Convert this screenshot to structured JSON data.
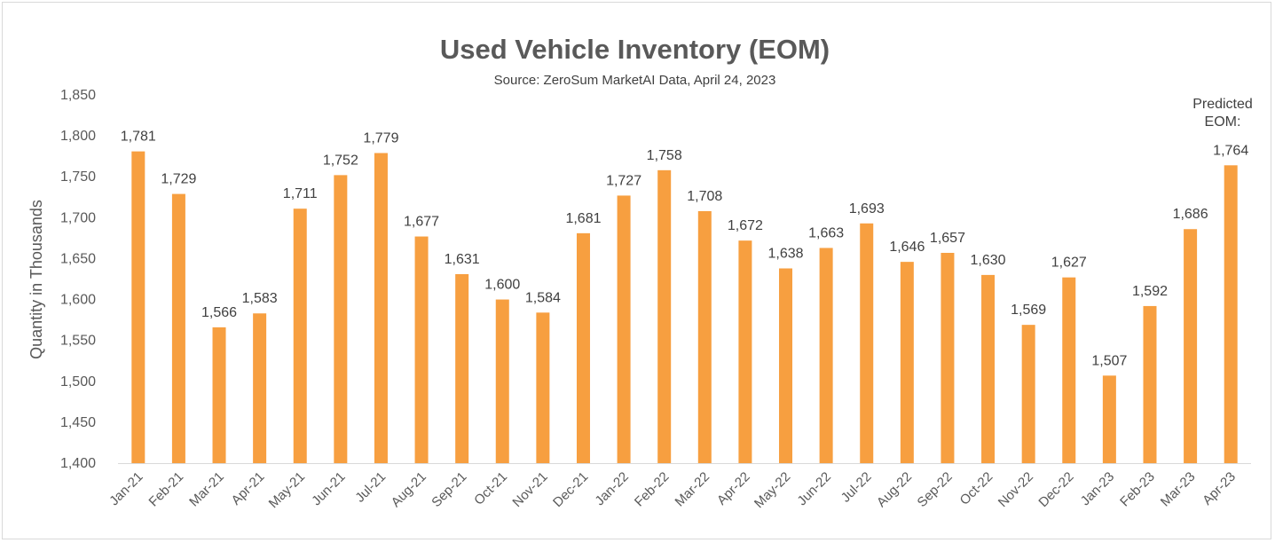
{
  "chart_data": {
    "type": "bar",
    "title": "Used Vehicle Inventory (EOM)",
    "subtitle": "Source: ZeroSum MarketAI Data, April 24, 2023",
    "ylabel": "Quantity in Thousands",
    "xlabel": "",
    "ylim": [
      1400,
      1850
    ],
    "yticks": [
      1400,
      1450,
      1500,
      1550,
      1600,
      1650,
      1700,
      1750,
      1800,
      1850
    ],
    "yticks_text": [
      "1,400",
      "1,450",
      "1,500",
      "1,550",
      "1,600",
      "1,650",
      "1,700",
      "1,750",
      "1,800",
      "1,850"
    ],
    "grid": false,
    "bar_color": "#F79F40",
    "categories": [
      "Jan-21",
      "Feb-21",
      "Mar-21",
      "Apr-21",
      "May-21",
      "Jun-21",
      "Jul-21",
      "Aug-21",
      "Sep-21",
      "Oct-21",
      "Nov-21",
      "Dec-21",
      "Jan-22",
      "Feb-22",
      "Mar-22",
      "Apr-22",
      "May-22",
      "Jun-22",
      "Jul-22",
      "Aug-22",
      "Sep-22",
      "Oct-22",
      "Nov-22",
      "Dec-22",
      "Jan-23",
      "Feb-23",
      "Mar-23",
      "Apr-23"
    ],
    "values": [
      1781,
      1729,
      1566,
      1583,
      1711,
      1752,
      1779,
      1677,
      1631,
      1600,
      1584,
      1681,
      1727,
      1758,
      1708,
      1672,
      1638,
      1663,
      1693,
      1646,
      1657,
      1630,
      1569,
      1627,
      1507,
      1592,
      1686,
      1764
    ],
    "data_labels": [
      "1,781",
      "1,729",
      "1,566",
      "1,583",
      "1,711",
      "1,752",
      "1,779",
      "1,677",
      "1,631",
      "1,600",
      "1,584",
      "1,681",
      "1,727",
      "1,758",
      "1,708",
      "1,672",
      "1,638",
      "1,663",
      "1,693",
      "1,646",
      "1,657",
      "1,630",
      "1,569",
      "1,627",
      "1,507",
      "1,592",
      "1,686",
      "1,764"
    ],
    "annotation": [
      "Predicted",
      "EOM:"
    ]
  }
}
